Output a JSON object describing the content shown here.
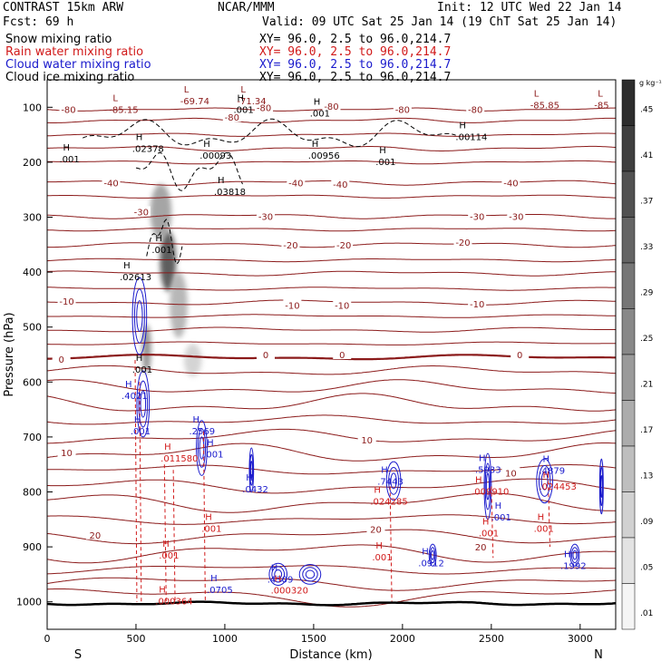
{
  "header": {
    "model": "CONTRAST 15km ARW",
    "forecast": "Fcst:   69 h",
    "center": "NCAR/MMM",
    "init": "Init: 12 UTC Wed 22 Jan 14",
    "valid": "Valid: 09 UTC Sat 25 Jan 14 (19 ChT Sat 25 Jan 14)"
  },
  "fields": [
    {
      "name": "Snow mixing ratio",
      "color": "#000000",
      "xy": "XY=   96.0,  2.5 to  96.0,214.7"
    },
    {
      "name": "Rain water mixing ratio",
      "color": "#d11a1a",
      "xy": "XY=   96.0,  2.5 to  96.0,214.7"
    },
    {
      "name": "Cloud water mixing ratio",
      "color": "#1a1acc",
      "xy": "XY=   96.0,  2.5 to  96.0,214.7"
    },
    {
      "name": "Cloud ice mixing ratio",
      "color": "#000000",
      "xy": "XY=   96.0,  2.5 to  96.0,214.7"
    }
  ],
  "chart_data": {
    "type": "heatmap",
    "xlabel": "Distance (km)",
    "ylabel": "Pressure (hPa)",
    "xlim": [
      0,
      3200
    ],
    "ylim": [
      1050,
      50
    ],
    "x_ticks": [
      0,
      500,
      1000,
      1500,
      2000,
      2500,
      3000
    ],
    "y_ticks": [
      100,
      200,
      300,
      400,
      500,
      600,
      700,
      800,
      900,
      1000
    ],
    "x_end_labels": {
      "left": "S",
      "right": "N"
    },
    "colorbar": {
      "unit": "g kg⁻¹",
      "ticks": [
        ".45",
        ".41",
        ".37",
        ".33",
        ".29",
        ".25",
        ".21",
        ".17",
        ".13",
        ".09",
        ".05",
        ".01"
      ]
    },
    "snow_field": [
      {
        "x": 680,
        "p": 380,
        "value": 0.45,
        "sx": 45,
        "sp": 55
      },
      {
        "x": 640,
        "p": 290,
        "value": 0.25,
        "sx": 60,
        "sp": 50
      },
      {
        "x": 560,
        "p": 540,
        "value": 0.3,
        "sx": 25,
        "sp": 45
      },
      {
        "x": 740,
        "p": 460,
        "value": 0.2,
        "sx": 50,
        "sp": 60
      },
      {
        "x": 820,
        "p": 560,
        "value": 0.12,
        "sx": 50,
        "sp": 30
      }
    ],
    "temperature_labels": [
      {
        "text": "-80",
        "x": 120,
        "p": 104
      },
      {
        "text": "-80",
        "x": 1040,
        "p": 118
      },
      {
        "text": "-80",
        "x": 1220,
        "p": 100
      },
      {
        "text": "-80",
        "x": 1600,
        "p": 98
      },
      {
        "text": "-80",
        "x": 2000,
        "p": 104
      },
      {
        "text": "-80",
        "x": 2410,
        "p": 104
      },
      {
        "text": "-40",
        "x": 360,
        "p": 237
      },
      {
        "text": "-40",
        "x": 1400,
        "p": 237
      },
      {
        "text": "-40",
        "x": 1650,
        "p": 240
      },
      {
        "text": "-40",
        "x": 2610,
        "p": 237
      },
      {
        "text": "-30",
        "x": 530,
        "p": 290
      },
      {
        "text": "-30",
        "x": 1230,
        "p": 298
      },
      {
        "text": "-30",
        "x": 2420,
        "p": 298
      },
      {
        "text": "-30",
        "x": 2640,
        "p": 298
      },
      {
        "text": "-20",
        "x": 1370,
        "p": 350
      },
      {
        "text": "-20",
        "x": 1670,
        "p": 350
      },
      {
        "text": "-20",
        "x": 2340,
        "p": 345
      },
      {
        "text": "-10",
        "x": 110,
        "p": 453
      },
      {
        "text": "-10",
        "x": 1380,
        "p": 460
      },
      {
        "text": "-10",
        "x": 1660,
        "p": 460
      },
      {
        "text": "-10",
        "x": 2420,
        "p": 458
      },
      {
        "text": "0",
        "x": 80,
        "p": 558
      },
      {
        "text": "0",
        "x": 1230,
        "p": 550
      },
      {
        "text": "0",
        "x": 1660,
        "p": 550
      },
      {
        "text": "0",
        "x": 2660,
        "p": 550
      },
      {
        "text": "10",
        "x": 110,
        "p": 728
      },
      {
        "text": "10",
        "x": 1800,
        "p": 705
      },
      {
        "text": "10",
        "x": 2610,
        "p": 765
      },
      {
        "text": "20",
        "x": 270,
        "p": 878
      },
      {
        "text": "20",
        "x": 1850,
        "p": 868
      },
      {
        "text": "20",
        "x": 2440,
        "p": 900
      }
    ],
    "maxima": [
      {
        "text": "-69.74",
        "x": 810,
        "p": 90,
        "color": "#8b1a1a"
      },
      {
        "text": "-71.34",
        "x": 1130,
        "p": 90,
        "color": "#8b1a1a"
      },
      {
        "text": "-85.15",
        "x": 410,
        "p": 105,
        "color": "#8b1a1a"
      },
      {
        "text": "-85.85",
        "x": 2780,
        "p": 97,
        "color": "#8b1a1a"
      },
      {
        "text": "-85",
        "x": 3140,
        "p": 97,
        "color": "#8b1a1a"
      },
      {
        "text": ".001",
        "x": 1110,
        "p": 105,
        "color": "#000000"
      },
      {
        "text": ".001",
        "x": 1540,
        "p": 112,
        "color": "#000000"
      },
      {
        "text": ".00114",
        "x": 2360,
        "p": 155,
        "color": "#000000"
      },
      {
        "text": ".02378",
        "x": 540,
        "p": 176,
        "color": "#000000"
      },
      {
        "text": ".00093",
        "x": 920,
        "p": 189,
        "color": "#000000"
      },
      {
        "text": ".00956",
        "x": 1530,
        "p": 189,
        "color": "#000000"
      },
      {
        "text": ".001",
        "x": 130,
        "p": 195,
        "color": "#000000"
      },
      {
        "text": ".001",
        "x": 1910,
        "p": 200,
        "color": "#000000"
      },
      {
        "text": ".03818",
        "x": 1000,
        "p": 255,
        "color": "#000000"
      },
      {
        "text": ".001",
        "x": 650,
        "p": 360,
        "color": "#000000"
      },
      {
        "text": ".02613",
        "x": 470,
        "p": 410,
        "color": "#000000"
      },
      {
        "text": ".001",
        "x": 540,
        "p": 578,
        "color": "#000000"
      },
      {
        "text": ".4021",
        "x": 480,
        "p": 626,
        "color": "#1a1acc"
      },
      {
        "text": ".001",
        "x": 530,
        "p": 690,
        "color": "#1a1acc"
      },
      {
        "text": ".2569",
        "x": 860,
        "p": 690,
        "color": "#1a1acc"
      },
      {
        "text": ".001",
        "x": 940,
        "p": 732,
        "color": "#1a1acc"
      },
      {
        "text": ".011580",
        "x": 700,
        "p": 740,
        "color": "#d11a1a"
      },
      {
        "text": ".0432",
        "x": 1160,
        "p": 796,
        "color": "#1a1acc"
      },
      {
        "text": ".7443",
        "x": 1920,
        "p": 782,
        "color": "#1a1acc"
      },
      {
        "text": ".024285",
        "x": 1880,
        "p": 818,
        "color": "#d11a1a"
      },
      {
        "text": ".5933",
        "x": 2470,
        "p": 760,
        "color": "#1a1acc"
      },
      {
        "text": ".009910",
        "x": 2450,
        "p": 800,
        "color": "#d11a1a"
      },
      {
        "text": ".001",
        "x": 2560,
        "p": 847,
        "color": "#1a1acc"
      },
      {
        "text": ".4879",
        "x": 2830,
        "p": 762,
        "color": "#1a1acc"
      },
      {
        "text": ".024453",
        "x": 2830,
        "p": 791,
        "color": "#d11a1a"
      },
      {
        "text": ".001",
        "x": 930,
        "p": 868,
        "color": "#d11a1a"
      },
      {
        "text": ".001",
        "x": 2490,
        "p": 876,
        "color": "#d11a1a"
      },
      {
        "text": ".001",
        "x": 2800,
        "p": 868,
        "color": "#d11a1a"
      },
      {
        "text": ".001",
        "x": 690,
        "p": 916,
        "color": "#d11a1a"
      },
      {
        "text": ".001",
        "x": 1890,
        "p": 920,
        "color": "#d11a1a"
      },
      {
        "text": ".0912",
        "x": 2150,
        "p": 930,
        "color": "#1a1acc"
      },
      {
        "text": ".1992",
        "x": 2950,
        "p": 935,
        "color": "#1a1acc"
      },
      {
        "text": ".0705",
        "x": 960,
        "p": 979,
        "color": "#1a1acc"
      },
      {
        "text": ".4309",
        "x": 1300,
        "p": 960,
        "color": "#1a1acc"
      },
      {
        "text": ".000320",
        "x": 1320,
        "p": 980,
        "color": "#d11a1a"
      },
      {
        "text": ".000364",
        "x": 670,
        "p": 1000,
        "color": "#d11a1a"
      }
    ]
  }
}
